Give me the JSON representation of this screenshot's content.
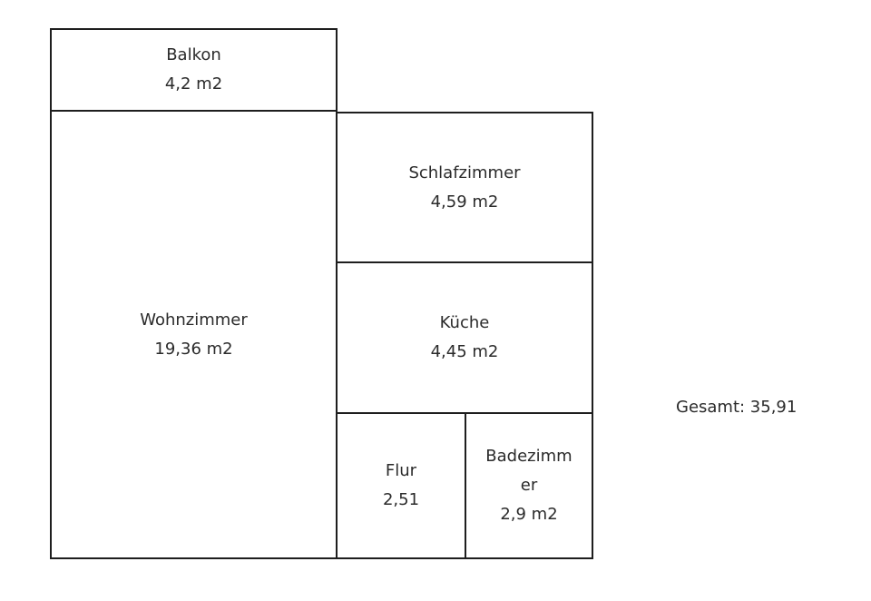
{
  "rooms": {
    "balkon": {
      "name": "Balkon",
      "area": "4,2 m2"
    },
    "wohnzimmer": {
      "name": "Wohnzimmer",
      "area": "19,36 m2"
    },
    "schlafzimmer": {
      "name": "Schlafzimmer",
      "area": "4,59 m2"
    },
    "kueche": {
      "name": "Küche",
      "area": "4,45 m2"
    },
    "flur": {
      "name": "Flur",
      "area": "2,51"
    },
    "badezimmer": {
      "name_line1": "Badezimm",
      "name_line2": "er",
      "area": "2,9 m2"
    }
  },
  "total": "Gesamt: 35,91"
}
